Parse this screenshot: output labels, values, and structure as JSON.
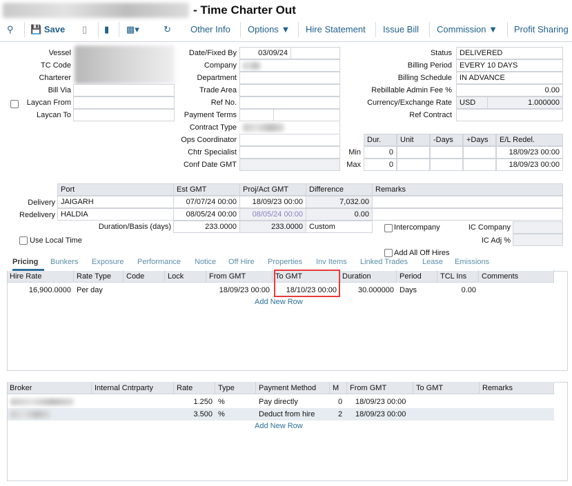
{
  "header": {
    "title": "- Time Charter Out"
  },
  "toolbar": {
    "save": "Save",
    "other_info": "Other Info",
    "options": "Options",
    "hire_statement": "Hire Statement",
    "issue_bill": "Issue Bill",
    "commission": "Commission",
    "profit_sharing": "Profit Sharing"
  },
  "left_form": {
    "vessel": "Vessel",
    "tc_code": "TC Code",
    "charterer": "Charterer",
    "bill_via": "Bill Via",
    "laycan_from": "Laycan From",
    "laycan_to": "Laycan To"
  },
  "mid_form": {
    "date_fixed_by": "Date/Fixed By",
    "date_value": "03/09/24",
    "company": "Company",
    "department": "Department",
    "trade_area": "Trade Area",
    "ref_no": "Ref No.",
    "payment_terms": "Payment Terms",
    "contract_type": "Contract Type",
    "ops_coordinator": "Ops Coordinator",
    "chtr_specialist": "Chtr Specialist",
    "conf_date_gmt": "Conf Date GMT"
  },
  "right_form": {
    "status": "Status",
    "status_value": "DELIVERED",
    "billing_period": "Billing Period",
    "billing_period_value": "EVERY 10 DAYS",
    "billing_schedule": "Billing Schedule",
    "billing_schedule_value": "IN ADVANCE",
    "admin_fee": "Rebillable Admin Fee %",
    "admin_fee_value": "0.00",
    "currency": "Currency/Exchange Rate",
    "currency_value": "USD",
    "exchange_rate": "1.000000",
    "ref_contract": "Ref Contract"
  },
  "duration_table": {
    "headers": [
      "Dur.",
      "Unit",
      "-Days",
      "+Days",
      "E/L Redel."
    ],
    "min_label": "Min",
    "max_label": "Max",
    "min": [
      "0",
      "",
      "",
      "",
      "18/09/23 00:00"
    ],
    "max": [
      "0",
      "",
      "",
      "",
      "18/09/23 00:00"
    ]
  },
  "port_table": {
    "headers": [
      "Port",
      "Est GMT",
      "Proj/Act GMT",
      "Difference",
      "Remarks"
    ],
    "rows": [
      {
        "label": "Delivery",
        "port": "JAIGARH",
        "est": "07/07/24 00:00",
        "proj": "18/09/23 00:00",
        "diff": "7,032.00",
        "remarks": ""
      },
      {
        "label": "Redelivery",
        "port": "HALDIA",
        "est": "08/05/24 00:00",
        "proj": "08/05/24 00:00",
        "diff": "0.00",
        "remarks": ""
      }
    ],
    "duration_label": "Duration/Basis (days)",
    "duration_est": "233.0000",
    "duration_proj": "233.0000",
    "basis": "Custom"
  },
  "options": {
    "use_local_time": "Use Local Time",
    "intercompany": "Intercompany",
    "ic_company": "IC Company",
    "ic_adj": "IC Adj %",
    "add_all_off_hires": "Add All Off Hires"
  },
  "tabs": [
    "Pricing",
    "Bunkers",
    "Exposure",
    "Performance",
    "Notice",
    "Off Hire",
    "Properties",
    "Inv Items",
    "Linked Trades",
    "Lease",
    "Emissions"
  ],
  "pricing": {
    "headers": [
      "Hire Rate",
      "Rate Type",
      "Code",
      "Lock",
      "From GMT",
      "To GMT",
      "Duration",
      "Period",
      "TCL Ins",
      "Comments"
    ],
    "rows": [
      [
        "16,900.0000",
        "Per day",
        "",
        "",
        "18/09/23 00:00",
        "18/10/23 00:00",
        "30.000000",
        "Days",
        "0.00",
        ""
      ]
    ],
    "add_row": "Add New Row"
  },
  "brokers": {
    "headers": [
      "Broker",
      "Internal Cntrparty",
      "Rate",
      "Type",
      "Payment Method",
      "M",
      "From GMT",
      "To GMT",
      "Remarks"
    ],
    "rows": [
      [
        "",
        "",
        "1.250",
        "%",
        "Pay directly",
        "0",
        "18/09/23 00:00",
        "",
        ""
      ],
      [
        "",
        "",
        "3.500",
        "%",
        "Deduct from hire",
        "2",
        "18/09/23 00:00",
        "",
        ""
      ]
    ],
    "add_row": "Add New Row"
  },
  "colors": {
    "highlight": "#e8393a",
    "tab_text": "#5a8ea8",
    "toolbar_text": "#1f5f8b",
    "header_bg": "#e4e7ec"
  }
}
